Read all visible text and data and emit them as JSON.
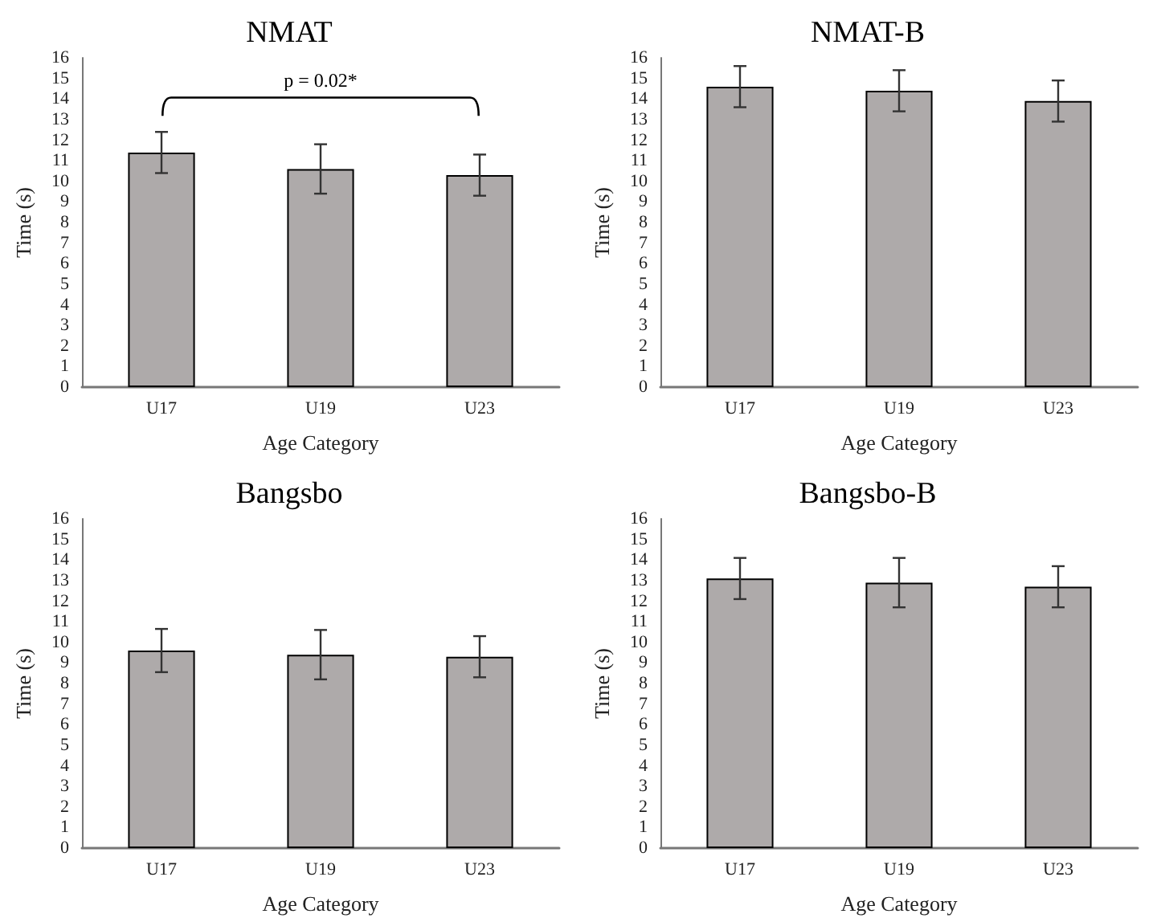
{
  "chart_data": [
    {
      "type": "bar",
      "title": "NMAT",
      "xlabel": "Age Category",
      "ylabel": "Time (s)",
      "categories": [
        "U17",
        "U19",
        "U23"
      ],
      "values": [
        11.4,
        10.6,
        10.3
      ],
      "errors": [
        1.0,
        1.2,
        1.0
      ],
      "color": "#aeaaaa",
      "ylim": [
        0,
        16
      ],
      "yticks": [
        0,
        1,
        2,
        3,
        4,
        5,
        6,
        7,
        8,
        9,
        10,
        11,
        12,
        13,
        14,
        15,
        16
      ],
      "annotations": [
        "p = 0.02*"
      ]
    },
    {
      "type": "bar",
      "title": "NMAT-B",
      "xlabel": "Age Category",
      "ylabel": "Time (s)",
      "categories": [
        "U17",
        "U19",
        "U23"
      ],
      "values": [
        14.6,
        14.4,
        13.9
      ],
      "errors": [
        1.0,
        1.0,
        1.0
      ],
      "color": "#aeaaaa",
      "ylim": [
        0,
        16
      ],
      "yticks": [
        0,
        1,
        2,
        3,
        4,
        5,
        6,
        7,
        8,
        9,
        10,
        11,
        12,
        13,
        14,
        15,
        16
      ]
    },
    {
      "type": "bar",
      "title": "Bangsbo",
      "xlabel": "Age Category",
      "ylabel": "Time (s)",
      "categories": [
        "U17",
        "U19",
        "U23"
      ],
      "values": [
        9.6,
        9.4,
        9.3
      ],
      "errors": [
        1.05,
        1.2,
        1.0
      ],
      "color": "#aeaaaa",
      "ylim": [
        0,
        16
      ],
      "yticks": [
        0,
        1,
        2,
        3,
        4,
        5,
        6,
        7,
        8,
        9,
        10,
        11,
        12,
        13,
        14,
        15,
        16
      ]
    },
    {
      "type": "bar",
      "title": "Bangsbo-B",
      "xlabel": "Age Category",
      "ylabel": "Time (s)",
      "categories": [
        "U17",
        "U19",
        "U23"
      ],
      "values": [
        13.1,
        12.9,
        12.7
      ],
      "errors": [
        1.0,
        1.2,
        1.0
      ],
      "color": "#aeaaaa",
      "ylim": [
        0,
        16
      ],
      "yticks": [
        0,
        1,
        2,
        3,
        4,
        5,
        6,
        7,
        8,
        9,
        10,
        11,
        12,
        13,
        14,
        15,
        16
      ]
    }
  ]
}
